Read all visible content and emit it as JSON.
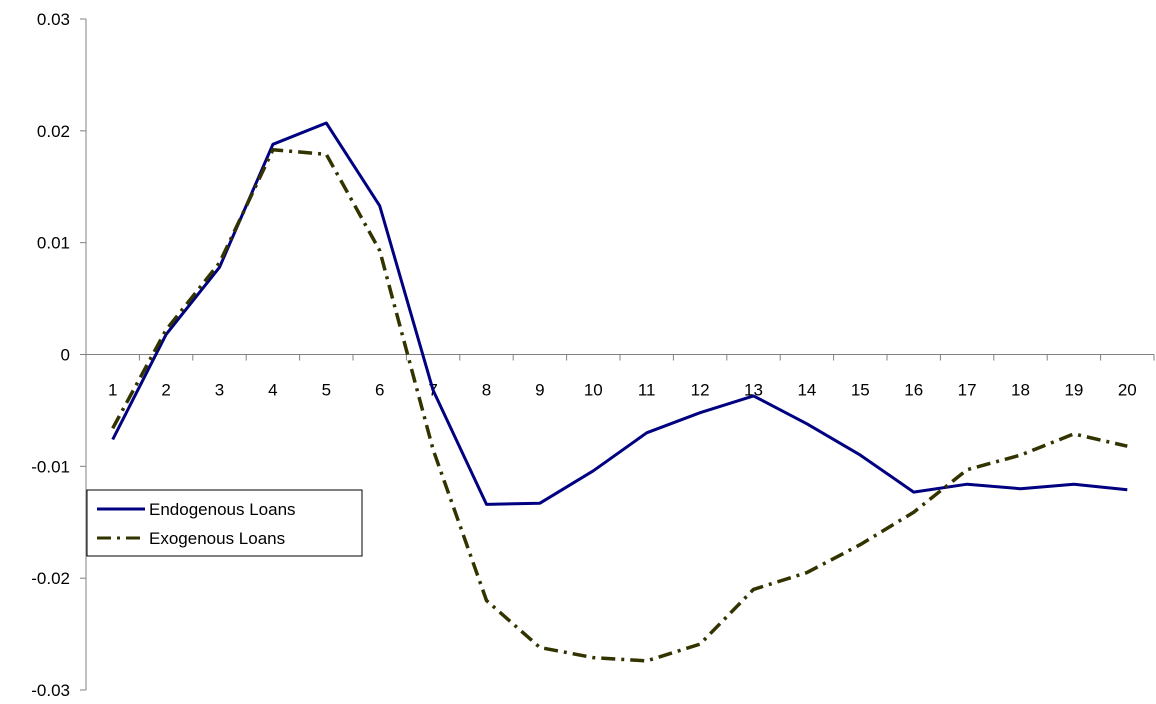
{
  "chart_data": {
    "type": "line",
    "title": "",
    "xlabel": "",
    "ylabel": "",
    "categories": [
      "1",
      "2",
      "3",
      "4",
      "5",
      "6",
      "7",
      "8",
      "9",
      "10",
      "11",
      "12",
      "13",
      "14",
      "15",
      "16",
      "17",
      "18",
      "19",
      "20"
    ],
    "ylim": [
      -0.03,
      0.03
    ],
    "yticks": [
      -0.03,
      -0.02,
      -0.01,
      0,
      0.01,
      0.02,
      0.03
    ],
    "ytick_labels": [
      "-0.03",
      "-0.02",
      "-0.01",
      "0",
      "0.01",
      "0.02",
      "0.03"
    ],
    "grid": false,
    "legend": "left-middle",
    "series": [
      {
        "name": "Endogenous Loans",
        "color": "#000080",
        "style": "solid",
        "values": [
          -0.0076,
          0.0018,
          0.0078,
          0.0188,
          0.0207,
          0.0133,
          -0.0032,
          -0.0134,
          -0.0133,
          -0.0104,
          -0.007,
          -0.0052,
          -0.0037,
          -0.0062,
          -0.009,
          -0.0123,
          -0.0116,
          -0.012,
          -0.0116,
          -0.0121
        ]
      },
      {
        "name": "Exogenous Loans",
        "color": "#333300",
        "style": "dash-dot",
        "values": [
          -0.0066,
          0.0022,
          0.0082,
          0.0183,
          0.0179,
          0.0093,
          -0.0085,
          -0.022,
          -0.0262,
          -0.0271,
          -0.0274,
          -0.0259,
          -0.021,
          -0.0195,
          -0.017,
          -0.0141,
          -0.0103,
          -0.009,
          -0.0071,
          -0.0082
        ]
      }
    ]
  }
}
